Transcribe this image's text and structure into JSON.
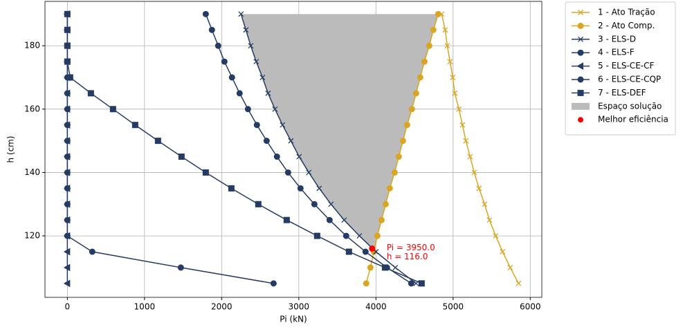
{
  "chart_data": {
    "type": "line",
    "x_label": "Pi (kN)",
    "y_label": "h (cm)",
    "xlim": [
      -290,
      6150
    ],
    "ylim": [
      100.6,
      194
    ],
    "xticks": [
      0,
      1000,
      2000,
      3000,
      4000,
      5000,
      6000
    ],
    "yticks": [
      120,
      140,
      160,
      180
    ],
    "grid": true,
    "legend": "outside right",
    "y": [
      105,
      110,
      115,
      120,
      125,
      130,
      135,
      140,
      145,
      150,
      155,
      160,
      165,
      170,
      175,
      180,
      185,
      190
    ],
    "series": [
      {
        "name": "1 - Ato Tração",
        "color": "#daa520",
        "marker": "x",
        "values": [
          5848,
          5740,
          5641,
          5552,
          5471,
          5408,
          5336,
          5274,
          5220,
          5166,
          5121,
          5076,
          5022,
          4996,
          4960,
          4924,
          4897,
          4852
        ]
      },
      {
        "name": "2 - Ato Comp.",
        "color": "#daa520",
        "marker": "o",
        "values": [
          3874,
          3928,
          3973,
          4018,
          4072,
          4126,
          4179,
          4242,
          4296,
          4350,
          4404,
          4466,
          4520,
          4574,
          4628,
          4691,
          4744,
          4807
        ]
      },
      {
        "name": "3 - ELS-D",
        "color": "#243b63",
        "marker": "x",
        "values": [
          4520,
          4251,
          4000,
          3785,
          3587,
          3417,
          3265,
          3130,
          3004,
          2897,
          2789,
          2691,
          2601,
          2529,
          2448,
          2377,
          2314,
          2251
        ]
      },
      {
        "name": "4 - ELS-F",
        "color": "#243b63",
        "marker": "o",
        "values": [
          4457,
          4143,
          3865,
          3614,
          3399,
          3202,
          3022,
          2861,
          2717,
          2583,
          2457,
          2341,
          2233,
          2134,
          2036,
          1955,
          1874,
          1794
        ]
      },
      {
        "name": "5 - ELS-CE-CF",
        "color": "#243b63",
        "marker": "<",
        "values": [
          0,
          0,
          0,
          0,
          0,
          0,
          0,
          0,
          0,
          0,
          0,
          0,
          0,
          0,
          0,
          0,
          0,
          0
        ]
      },
      {
        "name": "6 - ELS-CE-CQP",
        "color": "#243b63",
        "marker": "o",
        "values": [
          2673,
          1471,
          323,
          0,
          0,
          0,
          0,
          0,
          0,
          0,
          0,
          0,
          0,
          0,
          0,
          0,
          0,
          0
        ]
      },
      {
        "name": "7 - ELS-DEF",
        "color": "#243b63",
        "marker": "s",
        "values": [
          4592,
          4117,
          3650,
          3238,
          2843,
          2475,
          2126,
          1794,
          1480,
          1175,
          879,
          592,
          305,
          36,
          0,
          0,
          0,
          0
        ]
      }
    ],
    "fill": {
      "name": "Espaço solução",
      "color": "#bbbbbb",
      "between": [
        2,
        1
      ]
    },
    "best": {
      "name": "Melhor eficiência",
      "color": "#ff0000",
      "x": 3950,
      "y": 116,
      "label": [
        "Pi = 3950.0",
        "h = 116.0"
      ]
    }
  }
}
